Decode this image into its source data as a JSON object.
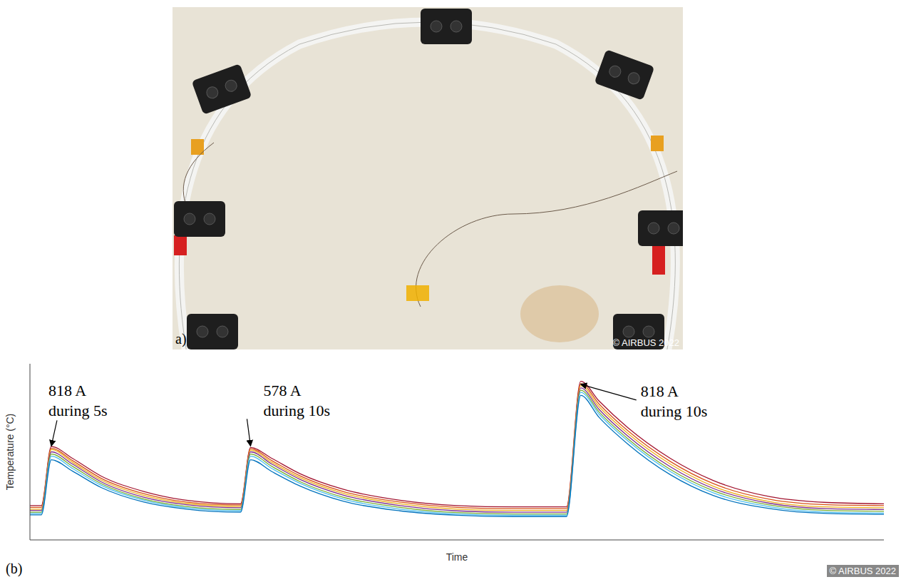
{
  "panel_a": {
    "label": "a)",
    "copyright": "© AIRBUS 2022"
  },
  "panel_b_label": "(b)",
  "copyright": "© AIRBUS 2022",
  "chart_data": {
    "type": "line",
    "x_label": "Time",
    "y_label": "Temperature (°C)",
    "x": [
      0,
      0.8,
      1.5,
      3,
      5,
      8,
      11,
      14.8,
      15.5,
      17,
      19,
      22,
      26,
      30,
      34,
      37.7,
      38.7,
      40,
      42,
      45,
      48,
      52,
      56,
      60
    ],
    "xlim": [
      0,
      60
    ],
    "xticks": [
      0,
      10,
      20,
      30,
      40,
      50,
      60
    ],
    "ylim": [
      0,
      4
    ],
    "yticks": [
      0,
      1,
      2,
      3,
      4
    ],
    "grid": true,
    "tick_labels": false,
    "series": [
      {
        "color": "#A2142F",
        "values": [
          0.78,
          0.78,
          2.12,
          1.85,
          1.45,
          1.1,
          0.9,
          0.82,
          2.1,
          1.85,
          1.5,
          1.15,
          0.9,
          0.78,
          0.75,
          0.75,
          3.6,
          3.15,
          2.55,
          1.85,
          1.35,
          0.98,
          0.85,
          0.82
        ]
      },
      {
        "color": "#D95319",
        "values": [
          0.74,
          0.74,
          2.08,
          1.8,
          1.4,
          1.05,
          0.86,
          0.79,
          2.07,
          1.8,
          1.45,
          1.1,
          0.86,
          0.74,
          0.71,
          0.71,
          3.55,
          3.08,
          2.48,
          1.78,
          1.28,
          0.92,
          0.8,
          0.78
        ]
      },
      {
        "color": "#EDB120",
        "values": [
          0.7,
          0.7,
          2.05,
          1.76,
          1.36,
          1.01,
          0.83,
          0.76,
          2.04,
          1.76,
          1.41,
          1.06,
          0.82,
          0.7,
          0.67,
          0.67,
          3.5,
          3.02,
          2.42,
          1.72,
          1.22,
          0.87,
          0.75,
          0.73
        ]
      },
      {
        "color": "#7E2F8E",
        "values": [
          0.67,
          0.67,
          2.0,
          1.72,
          1.32,
          0.97,
          0.8,
          0.73,
          2.0,
          1.72,
          1.37,
          1.02,
          0.78,
          0.66,
          0.63,
          0.63,
          3.45,
          2.96,
          2.36,
          1.66,
          1.17,
          0.83,
          0.71,
          0.69
        ]
      },
      {
        "color": "#77AC30",
        "values": [
          0.63,
          0.63,
          1.95,
          1.67,
          1.28,
          0.93,
          0.76,
          0.69,
          1.95,
          1.67,
          1.32,
          0.97,
          0.74,
          0.62,
          0.59,
          0.59,
          3.4,
          2.9,
          2.3,
          1.6,
          1.12,
          0.79,
          0.67,
          0.65
        ]
      },
      {
        "color": "#4DBEEE",
        "values": [
          0.6,
          0.6,
          1.9,
          1.62,
          1.24,
          0.9,
          0.73,
          0.66,
          1.9,
          1.62,
          1.28,
          0.93,
          0.7,
          0.59,
          0.56,
          0.56,
          3.35,
          2.85,
          2.25,
          1.55,
          1.07,
          0.75,
          0.63,
          0.61
        ]
      },
      {
        "color": "#0072BD",
        "values": [
          0.57,
          0.57,
          1.82,
          1.56,
          1.19,
          0.86,
          0.7,
          0.63,
          1.82,
          1.55,
          1.22,
          0.88,
          0.66,
          0.56,
          0.53,
          0.53,
          3.28,
          2.78,
          2.18,
          1.48,
          1.01,
          0.71,
          0.6,
          0.58
        ]
      }
    ],
    "annotations": [
      {
        "text": [
          "818 A",
          "during 5s"
        ],
        "x": 1.5,
        "y": 2.1
      },
      {
        "text": [
          "578 A",
          "during 10s"
        ],
        "x": 15.5,
        "y": 2.1
      },
      {
        "text": [
          "818 A",
          "during 10s"
        ],
        "x": 38.7,
        "y": 3.5
      }
    ]
  }
}
